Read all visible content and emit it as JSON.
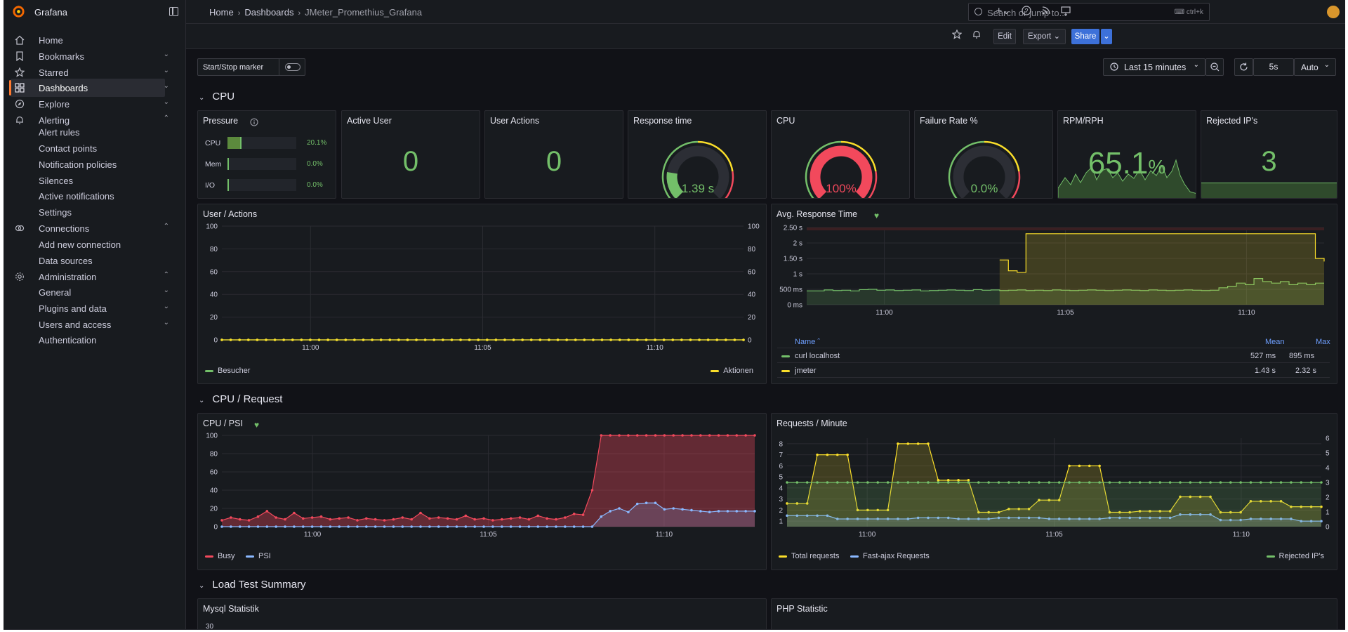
{
  "app": {
    "brand": "Grafana"
  },
  "sidebar": {
    "items": [
      {
        "label": "Home"
      },
      {
        "label": "Bookmarks"
      },
      {
        "label": "Starred"
      },
      {
        "label": "Dashboards"
      },
      {
        "label": "Explore"
      },
      {
        "label": "Alerting"
      },
      {
        "label": "Connections"
      },
      {
        "label": "Administration"
      }
    ],
    "alerting_sub": [
      "Alert rules",
      "Contact points",
      "Notification policies",
      "Silences",
      "Active notifications",
      "Settings"
    ],
    "connections_sub": [
      "Add new connection",
      "Data sources"
    ],
    "admin_sub": [
      "General",
      "Plugins and data",
      "Users and access",
      "Authentication"
    ]
  },
  "breadcrumb": [
    "Home",
    "Dashboards",
    "JMeter_Promethius_Grafana"
  ],
  "search": {
    "placeholder": "Search or jump to...",
    "shortcut": "ctrl+k"
  },
  "toolbar": {
    "edit": "Edit",
    "export": "Export",
    "share": "Share"
  },
  "controls": {
    "marker_label": "Start/Stop marker",
    "time_range": "Last 15 minutes",
    "refresh_interval": "5s",
    "auto": "Auto"
  },
  "rows": [
    "CPU",
    "CPU / Request",
    "Load Test Summary"
  ],
  "stats": {
    "pressure": {
      "title": "Pressure",
      "bars": [
        {
          "label": "CPU",
          "value": "20.1%",
          "fraction": 0.201
        },
        {
          "label": "Mem",
          "value": "0.0%",
          "fraction": 0
        },
        {
          "label": "I/O",
          "value": "0.0%",
          "fraction": 0
        }
      ]
    },
    "active_user": {
      "title": "Active User",
      "value": "0"
    },
    "user_actions": {
      "title": "User Actions",
      "value": "0"
    },
    "response_time": {
      "title": "Response time",
      "value": "1.39 s",
      "fraction": 0.2,
      "color": "#73bf69"
    },
    "cpu": {
      "title": "CPU",
      "value": "100%",
      "fraction": 1.0,
      "color": "#f2495c"
    },
    "failure_rate": {
      "title": "Failure Rate %",
      "value": "0.0%",
      "fraction": 0.0,
      "color": "#73bf69"
    },
    "rpm": {
      "title": "RPM/RPH",
      "value": "65.1",
      "unit": "%"
    },
    "rejected": {
      "title": "Rejected IP's",
      "value": "3"
    }
  },
  "panels": {
    "user_actions_chart": {
      "title": "User / Actions",
      "legend": [
        "Besucher",
        "Aktionen"
      ]
    },
    "avg_response": {
      "title": "Avg. Response Time",
      "table_headers": [
        "Name",
        "Mean",
        "Max"
      ],
      "table_rows": [
        {
          "name": "curl localhost",
          "mean": "527 ms",
          "max": "895 ms",
          "color": "#73bf69"
        },
        {
          "name": "jmeter",
          "mean": "1.43 s",
          "max": "2.32 s",
          "color": "#fade2a"
        }
      ]
    },
    "cpu_psi": {
      "title": "CPU / PSI",
      "legend": [
        "Busy",
        "PSI"
      ]
    },
    "requests": {
      "title": "Requests / Minute",
      "legend": [
        "Total requests",
        "Fast-ajax Requests",
        "Rejected IP's"
      ]
    },
    "mysql": {
      "title": "Mysql Statistik",
      "first_tick": "30"
    },
    "php": {
      "title": "PHP Statistic"
    }
  },
  "chart_data": [
    {
      "type": "line",
      "title": "User / Actions",
      "x_ticks": [
        "11:00",
        "11:05",
        "11:10"
      ],
      "ylim": [
        0,
        100
      ],
      "y_ticks": [
        0,
        20,
        40,
        60,
        80,
        100
      ],
      "series": [
        {
          "name": "Besucher",
          "color": "#73bf69",
          "values": [
            0,
            0,
            0,
            0,
            0,
            0,
            0,
            0,
            0,
            0,
            0,
            0,
            0,
            0,
            0,
            0,
            0,
            0,
            0,
            0,
            0,
            0,
            0,
            0,
            0,
            0,
            0,
            0,
            0,
            0,
            0,
            0,
            0,
            0,
            0,
            0,
            0,
            0,
            0,
            0,
            0,
            0,
            0,
            0,
            0,
            0,
            0,
            0,
            0,
            0,
            0,
            0,
            0,
            0,
            0,
            0,
            0,
            0,
            0,
            0
          ]
        },
        {
          "name": "Aktionen",
          "color": "#fade2a",
          "values": [
            0,
            0,
            0,
            0,
            0,
            0,
            0,
            0,
            0,
            0,
            0,
            0,
            0,
            0,
            0,
            0,
            0,
            0,
            0,
            0,
            0,
            0,
            0,
            0,
            0,
            0,
            0,
            0,
            0,
            0,
            0,
            0,
            0,
            0,
            0,
            0,
            0,
            0,
            0,
            0,
            0,
            0,
            0,
            0,
            0,
            0,
            0,
            0,
            0,
            0,
            0,
            0,
            0,
            0,
            0,
            0,
            0,
            0,
            0,
            0
          ]
        }
      ]
    },
    {
      "type": "line",
      "title": "Avg. Response Time",
      "x_ticks": [
        "11:00",
        "11:05",
        "11:10"
      ],
      "y_ticks": [
        "0 ms",
        "500 ms",
        "1 s",
        "1.50 s",
        "2 s",
        "2.50 s"
      ],
      "ylim": [
        0,
        2.5
      ],
      "series": [
        {
          "name": "curl localhost",
          "color": "#73bf69",
          "values": [
            0.45,
            0.45,
            0.48,
            0.46,
            0.47,
            0.45,
            0.49,
            0.5,
            0.47,
            0.48,
            0.46,
            0.47,
            0.48,
            0.45,
            0.46,
            0.47,
            0.48,
            0.47,
            0.46,
            0.49,
            0.47,
            0.48,
            0.46,
            0.47,
            0.48,
            0.46,
            0.47,
            0.46,
            0.48,
            0.47,
            0.46,
            0.47,
            0.48,
            0.47,
            0.46,
            0.47,
            0.48,
            0.47,
            0.46,
            0.48,
            0.47,
            0.46,
            0.47,
            0.48,
            0.47,
            0.46,
            0.47,
            0.55,
            0.6,
            0.7,
            0.65,
            0.85,
            0.75,
            0.7,
            0.75,
            0.65,
            0.7,
            0.65,
            0.7,
            0.7
          ]
        },
        {
          "name": "jmeter",
          "color": "#fade2a",
          "values": [
            null,
            null,
            null,
            null,
            null,
            null,
            null,
            null,
            null,
            null,
            null,
            null,
            null,
            null,
            null,
            null,
            null,
            null,
            null,
            null,
            null,
            null,
            1.45,
            1.1,
            1.05,
            2.3,
            2.3,
            2.3,
            2.3,
            2.3,
            2.3,
            2.3,
            2.3,
            2.3,
            2.3,
            2.3,
            2.3,
            2.3,
            2.3,
            2.3,
            2.3,
            2.3,
            2.3,
            2.3,
            2.3,
            2.3,
            2.3,
            2.3,
            2.3,
            2.3,
            2.3,
            2.3,
            2.3,
            2.3,
            2.3,
            2.3,
            2.3,
            2.3,
            1.5,
            1.4
          ]
        }
      ]
    },
    {
      "type": "line",
      "title": "CPU / PSI",
      "x_ticks": [
        "11:00",
        "11:05",
        "11:10"
      ],
      "ylim": [
        0,
        100
      ],
      "y_ticks": [
        0,
        20,
        40,
        60,
        80,
        100
      ],
      "series": [
        {
          "name": "Busy",
          "color": "#f2495c",
          "values": [
            7,
            10,
            8,
            7,
            11,
            17,
            10,
            8,
            15,
            9,
            10,
            11,
            8,
            9,
            10,
            7,
            9,
            8,
            7,
            8,
            10,
            8,
            15,
            9,
            10,
            9,
            8,
            12,
            8,
            9,
            7,
            8,
            9,
            10,
            8,
            12,
            9,
            8,
            10,
            14,
            13,
            40,
            100,
            100,
            100,
            100,
            100,
            100,
            100,
            100,
            100,
            100,
            100,
            100,
            100,
            100,
            100,
            100,
            100,
            100
          ]
        },
        {
          "name": "PSI",
          "color": "#8ab8ff",
          "values": [
            0,
            0,
            0,
            0,
            0,
            0,
            0,
            0,
            0,
            0,
            0,
            0,
            0,
            0,
            0,
            0,
            0,
            0,
            0,
            0,
            0,
            0,
            0,
            0,
            0,
            0,
            0,
            0,
            0,
            0,
            0,
            0,
            0,
            0,
            0,
            0,
            0,
            0,
            0,
            0,
            0,
            0,
            11,
            17,
            20,
            16,
            25,
            26,
            26,
            19,
            20,
            19,
            18,
            17,
            16,
            17,
            17,
            17,
            17,
            17
          ]
        }
      ]
    },
    {
      "type": "line",
      "title": "Requests / Minute",
      "x_ticks": [
        "11:00",
        "11:05",
        "11:10"
      ],
      "y_ticks_left": [
        1,
        2,
        3,
        4,
        5,
        6,
        7,
        8
      ],
      "y_ticks_right": [
        0,
        1,
        2,
        3,
        4,
        5,
        6
      ],
      "series": [
        {
          "name": "Total requests",
          "color": "#fade2a",
          "axis": "left",
          "values": [
            2.6,
            2.6,
            2.6,
            7,
            7,
            7,
            7,
            2,
            2,
            2,
            2,
            8,
            8,
            8,
            8,
            4.7,
            4.7,
            4.7,
            4.7,
            1.8,
            1.8,
            1.8,
            2.1,
            2.1,
            2.1,
            2.9,
            2.9,
            2.9,
            6,
            6,
            6,
            6,
            1.8,
            1.8,
            1.8,
            1.9,
            1.9,
            1.9,
            1.9,
            3.2,
            3.2,
            3.2,
            3.2,
            1.8,
            1.8,
            1.8,
            2.8,
            2.8,
            2.8,
            2.8,
            2.3,
            2.3,
            2.3,
            2.3
          ]
        },
        {
          "name": "Fast-ajax Requests",
          "color": "#8ab8ff",
          "axis": "left",
          "values": [
            1.5,
            1.5,
            1.5,
            1.5,
            1.5,
            1.2,
            1.2,
            1.2,
            1.2,
            1.2,
            1.2,
            1.2,
            1.2,
            1.3,
            1.3,
            1.3,
            1.3,
            1.2,
            1.2,
            1.2,
            1.2,
            1.3,
            1.3,
            1.3,
            1.3,
            1.3,
            1.2,
            1.2,
            1.2,
            1.2,
            1.2,
            1.2,
            1.3,
            1.3,
            1.3,
            1.3,
            1.3,
            1.3,
            1.3,
            1.6,
            1.6,
            1.6,
            1.6,
            1.1,
            1.1,
            1.1,
            1.2,
            1.2,
            1.2,
            1.2,
            1.2,
            1.0,
            1.0,
            1.0
          ]
        },
        {
          "name": "Rejected IP's",
          "color": "#73bf69",
          "axis": "right",
          "values": [
            3,
            3,
            3,
            3,
            3,
            3,
            3,
            3,
            3,
            3,
            3,
            3,
            3,
            3,
            3,
            3,
            3,
            3,
            3,
            3,
            3,
            3,
            3,
            3,
            3,
            3,
            3,
            3,
            3,
            3,
            3,
            3,
            3,
            3,
            3,
            3,
            3,
            3,
            3,
            3,
            3,
            3,
            3,
            3,
            3,
            3,
            3,
            3,
            3,
            3,
            3,
            3,
            3,
            3
          ]
        }
      ]
    }
  ]
}
